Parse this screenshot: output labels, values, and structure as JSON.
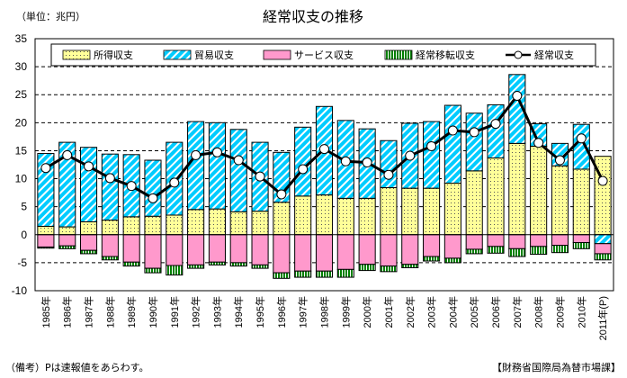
{
  "chart_data": {
    "type": "bar",
    "stacked": true,
    "title": "経常収支の推移",
    "unit_label": "（単位：兆円）",
    "ylim": [
      -10,
      35
    ],
    "yticks": [
      35,
      30,
      25,
      20,
      15,
      10,
      5,
      0,
      -5,
      -10
    ],
    "grid": "dashed horizontal",
    "legend_position": "top",
    "categories": [
      "1985年",
      "1986年",
      "1987年",
      "1988年",
      "1989年",
      "1990年",
      "1991年",
      "1992年",
      "1993年",
      "1994年",
      "1995年",
      "1996年",
      "1997年",
      "1998年",
      "1999年",
      "2000年",
      "2001年",
      "2002年",
      "2003年",
      "2004年",
      "2005年",
      "2006年",
      "2007年",
      "2008年",
      "2009年",
      "2010年",
      "2011年(P)"
    ],
    "series": [
      {
        "name": "所得収支",
        "kind": "bar",
        "color": "#ffff99",
        "pattern": "dots",
        "values": [
          1.5,
          1.4,
          2.3,
          2.6,
          3.2,
          3.3,
          3.5,
          4.5,
          4.6,
          4.1,
          4.2,
          5.8,
          6.9,
          7.1,
          6.5,
          6.5,
          8.4,
          8.3,
          8.3,
          9.2,
          11.4,
          13.7,
          16.3,
          15.8,
          12.3,
          11.7,
          14.0
        ]
      },
      {
        "name": "貿易収支",
        "kind": "bar",
        "color": "#00ccff",
        "pattern": "stripes",
        "values": [
          13.0,
          15.1,
          13.3,
          11.8,
          11.1,
          10.0,
          13.0,
          15.7,
          15.4,
          14.7,
          12.3,
          8.9,
          12.3,
          15.8,
          13.9,
          12.4,
          8.4,
          11.6,
          11.9,
          13.9,
          10.3,
          9.5,
          12.3,
          4.0,
          4.0,
          8.0,
          -1.6
        ]
      },
      {
        "name": "サービス収支",
        "kind": "bar",
        "color": "#ff99cc",
        "pattern": "solid",
        "values": [
          -2.2,
          -2.0,
          -2.8,
          -3.9,
          -4.9,
          -6.0,
          -5.5,
          -5.4,
          -4.9,
          -5.0,
          -5.4,
          -6.8,
          -6.5,
          -6.5,
          -6.2,
          -5.3,
          -5.6,
          -5.3,
          -3.9,
          -4.2,
          -2.6,
          -2.1,
          -2.5,
          -2.1,
          -1.9,
          -1.4,
          -1.8
        ]
      },
      {
        "name": "経常移転収支",
        "kind": "bar",
        "color": "#008000",
        "pattern": "vstripes",
        "values": [
          -0.2,
          -0.5,
          -0.6,
          -0.6,
          -0.7,
          -0.8,
          -1.7,
          -0.6,
          -0.5,
          -0.6,
          -0.6,
          -1.0,
          -1.1,
          -1.1,
          -1.4,
          -1.1,
          -1.0,
          -0.6,
          -0.8,
          -0.8,
          -0.8,
          -1.2,
          -1.4,
          -1.4,
          -1.3,
          -1.1,
          -1.1
        ]
      },
      {
        "name": "経常収支",
        "kind": "line",
        "color": "#000000",
        "values": [
          11.9,
          14.2,
          12.2,
          10.1,
          8.7,
          6.5,
          9.3,
          14.2,
          14.7,
          13.3,
          10.4,
          7.2,
          11.7,
          15.3,
          13.1,
          12.9,
          10.7,
          14.1,
          15.8,
          18.6,
          18.3,
          19.8,
          24.8,
          16.4,
          13.3,
          17.2,
          9.6
        ]
      }
    ]
  },
  "notes": {
    "left": "（備考）Pは速報値をあらわす。",
    "right": "【財務省国際局為替市場課】"
  }
}
